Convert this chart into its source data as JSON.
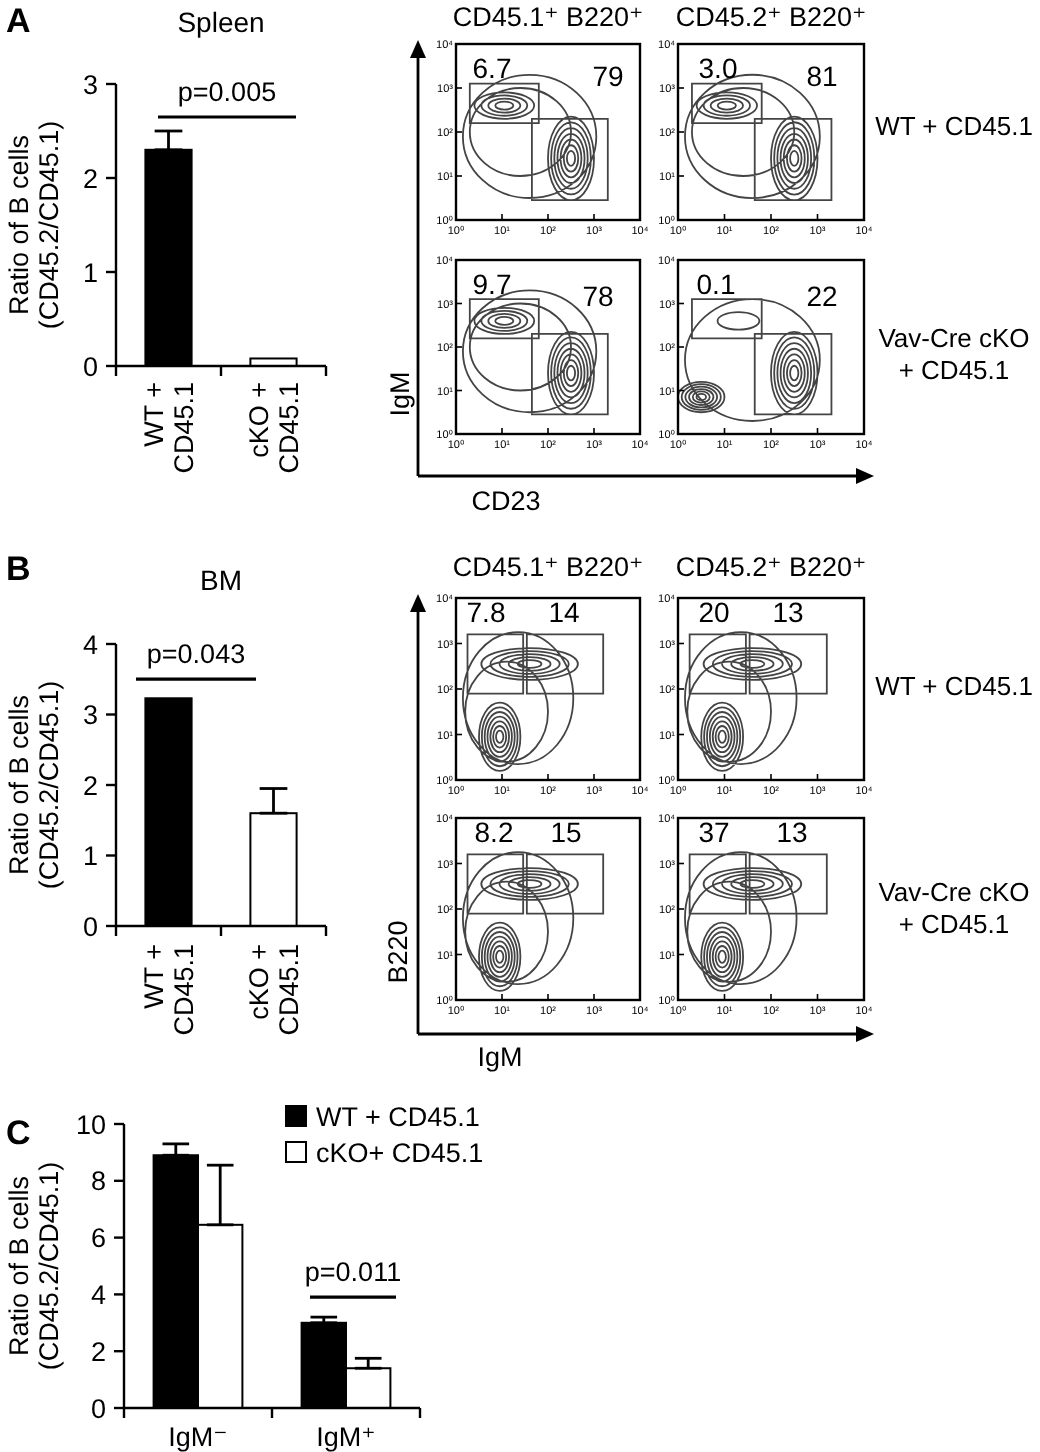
{
  "chart_data": [
    {
      "type": "bar",
      "title": "Spleen",
      "ylabel": "Ratio of B cells (CD45.2/CD45.1)",
      "categories": [
        "WT + CD45.1",
        "cKO + CD45.1"
      ],
      "values": [
        2.3,
        0.08
      ],
      "colors": [
        "#000000",
        "#ffffff"
      ],
      "errors": [
        [
          2.3,
          2.5
        ],
        null
      ],
      "ylim": [
        0,
        3
      ],
      "yticks": [
        0,
        1,
        2,
        3
      ],
      "annotations": [
        "A",
        "p=0.005"
      ]
    },
    {
      "type": "scatter",
      "title": "CD45.1⁺ B220⁺",
      "xlim": [
        1,
        10000
      ],
      "ylim": [
        1,
        10000
      ],
      "log": "xy",
      "xticks": [
        {
          "value": 1,
          "label": "10⁰"
        },
        {
          "value": 10,
          "label": "10¹"
        },
        {
          "value": 100,
          "label": "10²"
        },
        {
          "value": 1000,
          "label": "10³"
        },
        {
          "value": 10000,
          "label": "10⁴"
        }
      ],
      "yticks": [
        {
          "value": 1,
          "label": "10⁰"
        },
        {
          "value": 10,
          "label": "10¹"
        },
        {
          "value": 100,
          "label": "10²"
        },
        {
          "value": 1000,
          "label": "10³"
        },
        {
          "value": 10000,
          "label": "10⁴"
        }
      ],
      "annotations": [
        "6.7",
        "79"
      ]
    },
    {
      "type": "scatter",
      "title": "CD45.2⁺ B220⁺",
      "xlim": [
        1,
        10000
      ],
      "ylim": [
        1,
        10000
      ],
      "log": "xy",
      "xticks": [
        {
          "value": 1,
          "label": "10⁰"
        },
        {
          "value": 10,
          "label": "10¹"
        },
        {
          "value": 100,
          "label": "10²"
        },
        {
          "value": 1000,
          "label": "10³"
        },
        {
          "value": 10000,
          "label": "10⁴"
        }
      ],
      "yticks": [
        {
          "value": 1,
          "label": "10⁰"
        },
        {
          "value": 10,
          "label": "10¹"
        },
        {
          "value": 100,
          "label": "10²"
        },
        {
          "value": 1000,
          "label": "10³"
        },
        {
          "value": 10000,
          "label": "10⁴"
        }
      ],
      "annotations": [
        "3.0",
        "81",
        "WT + CD45.1"
      ]
    },
    {
      "type": "scatter",
      "xlabel": "CD23",
      "ylabel": "IgM",
      "xlim": [
        1,
        10000
      ],
      "ylim": [
        1,
        10000
      ],
      "log": "xy",
      "xticks": [
        {
          "value": 1,
          "label": "10⁰"
        },
        {
          "value": 10,
          "label": "10¹"
        },
        {
          "value": 100,
          "label": "10²"
        },
        {
          "value": 1000,
          "label": "10³"
        },
        {
          "value": 10000,
          "label": "10⁴"
        }
      ],
      "yticks": [
        {
          "value": 1,
          "label": "10⁰"
        },
        {
          "value": 10,
          "label": "10¹"
        },
        {
          "value": 100,
          "label": "10²"
        },
        {
          "value": 1000,
          "label": "10³"
        },
        {
          "value": 10000,
          "label": "10⁴"
        }
      ],
      "annotations": [
        "9.7",
        "78"
      ]
    },
    {
      "type": "scatter",
      "xlim": [
        1,
        10000
      ],
      "ylim": [
        1,
        10000
      ],
      "log": "xy",
      "xticks": [
        {
          "value": 1,
          "label": "10⁰"
        },
        {
          "value": 10,
          "label": "10¹"
        },
        {
          "value": 100,
          "label": "10²"
        },
        {
          "value": 1000,
          "label": "10³"
        },
        {
          "value": 10000,
          "label": "10⁴"
        }
      ],
      "yticks": [
        {
          "value": 1,
          "label": "10⁰"
        },
        {
          "value": 10,
          "label": "10¹"
        },
        {
          "value": 100,
          "label": "10²"
        },
        {
          "value": 1000,
          "label": "10³"
        },
        {
          "value": 10000,
          "label": "10⁴"
        }
      ],
      "annotations": [
        "0.1",
        "22",
        "Vav-Cre cKO + CD45.1"
      ]
    },
    {
      "type": "bar",
      "title": "BM",
      "ylabel": "Ratio of B cells (CD45.2/CD45.1)",
      "categories": [
        "WT + CD45.1",
        "cKO + CD45.1"
      ],
      "values": [
        3.23,
        1.6
      ],
      "colors": [
        "#000000",
        "#ffffff"
      ],
      "errors": [
        null,
        [
          1.6,
          1.95
        ]
      ],
      "ylim": [
        0,
        4
      ],
      "yticks": [
        0,
        1,
        2,
        3,
        4
      ],
      "annotations": [
        "B",
        "p=0.043"
      ]
    },
    {
      "type": "scatter",
      "title": "CD45.1⁺ B220⁺",
      "xlim": [
        1,
        10000
      ],
      "ylim": [
        1,
        10000
      ],
      "log": "xy",
      "xticks": [
        {
          "value": 1,
          "label": "10⁰"
        },
        {
          "value": 10,
          "label": "10¹"
        },
        {
          "value": 100,
          "label": "10²"
        },
        {
          "value": 1000,
          "label": "10³"
        },
        {
          "value": 10000,
          "label": "10⁴"
        }
      ],
      "yticks": [
        {
          "value": 1,
          "label": "10⁰"
        },
        {
          "value": 10,
          "label": "10¹"
        },
        {
          "value": 100,
          "label": "10²"
        },
        {
          "value": 1000,
          "label": "10³"
        },
        {
          "value": 10000,
          "label": "10⁴"
        }
      ],
      "annotations": [
        "7.8",
        "14"
      ]
    },
    {
      "type": "scatter",
      "title": "CD45.2⁺ B220⁺",
      "xlim": [
        1,
        10000
      ],
      "ylim": [
        1,
        10000
      ],
      "log": "xy",
      "xticks": [
        {
          "value": 1,
          "label": "10⁰"
        },
        {
          "value": 10,
          "label": "10¹"
        },
        {
          "value": 100,
          "label": "10²"
        },
        {
          "value": 1000,
          "label": "10³"
        },
        {
          "value": 10000,
          "label": "10⁴"
        }
      ],
      "yticks": [
        {
          "value": 1,
          "label": "10⁰"
        },
        {
          "value": 10,
          "label": "10¹"
        },
        {
          "value": 100,
          "label": "10²"
        },
        {
          "value": 1000,
          "label": "10³"
        },
        {
          "value": 10000,
          "label": "10⁴"
        }
      ],
      "annotations": [
        "20",
        "13",
        "WT + CD45.1"
      ]
    },
    {
      "type": "scatter",
      "xlabel": "IgM",
      "ylabel": "B220",
      "xlim": [
        1,
        10000
      ],
      "ylim": [
        1,
        10000
      ],
      "log": "xy",
      "xticks": [
        {
          "value": 1,
          "label": "10⁰"
        },
        {
          "value": 10,
          "label": "10¹"
        },
        {
          "value": 100,
          "label": "10²"
        },
        {
          "value": 1000,
          "label": "10³"
        },
        {
          "value": 10000,
          "label": "10⁴"
        }
      ],
      "yticks": [
        {
          "value": 1,
          "label": "10⁰"
        },
        {
          "value": 10,
          "label": "10¹"
        },
        {
          "value": 100,
          "label": "10²"
        },
        {
          "value": 1000,
          "label": "10³"
        },
        {
          "value": 10000,
          "label": "10⁴"
        }
      ],
      "annotations": [
        "8.2",
        "15"
      ]
    },
    {
      "type": "scatter",
      "xlim": [
        1,
        10000
      ],
      "ylim": [
        1,
        10000
      ],
      "log": "xy",
      "xticks": [
        {
          "value": 1,
          "label": "10⁰"
        },
        {
          "value": 10,
          "label": "10¹"
        },
        {
          "value": 100,
          "label": "10²"
        },
        {
          "value": 1000,
          "label": "10³"
        },
        {
          "value": 10000,
          "label": "10⁴"
        }
      ],
      "yticks": [
        {
          "value": 1,
          "label": "10⁰"
        },
        {
          "value": 10,
          "label": "10¹"
        },
        {
          "value": 100,
          "label": "10²"
        },
        {
          "value": 1000,
          "label": "10³"
        },
        {
          "value": 10000,
          "label": "10⁴"
        }
      ],
      "annotations": [
        "37",
        "13",
        "Vav-Cre cKO + CD45.1"
      ]
    },
    {
      "type": "bar",
      "ylabel": "Ratio of B cells (CD45.2/CD45.1)",
      "categories": [
        "IgM⁻",
        "IgM⁺"
      ],
      "series": [
        {
          "name": "WT + CD45.1",
          "color": "#000000",
          "values": [
            8.9,
            3.0
          ],
          "errors": [
            [
              8.9,
              9.3
            ],
            [
              3.0,
              3.2
            ]
          ]
        },
        {
          "name": "cKO+ CD45.1",
          "color": "#ffffff",
          "values": [
            6.45,
            1.4
          ],
          "errors": [
            [
              6.45,
              8.55
            ],
            [
              1.4,
              1.75
            ]
          ]
        }
      ],
      "ylim": [
        0,
        10
      ],
      "yticks": [
        0,
        2,
        4,
        6,
        8,
        10
      ],
      "legend": "top right",
      "annotations": [
        "C",
        "p=0.011"
      ]
    }
  ]
}
